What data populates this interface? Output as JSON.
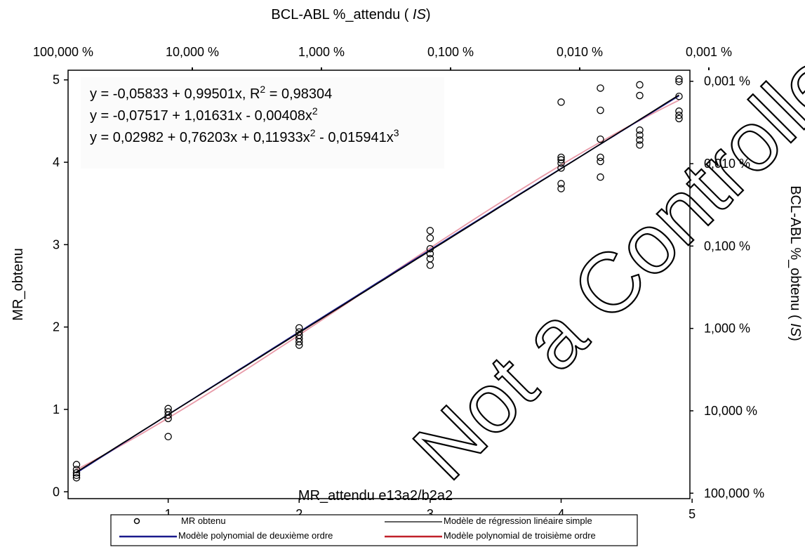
{
  "chart_data": {
    "type": "scatter",
    "xlabel": "MR_attendu e13a2/b2a2",
    "ylabel": "MR_obtenu",
    "top_axis_title": "BCL-ABL %_attendu (IS)",
    "right_axis_title": "BCL-ABL %_obtenu (IS)",
    "xlim": [
      0.3,
      5.0
    ],
    "ylim": [
      -0.1,
      5.1
    ],
    "x_ticks": [
      "1",
      "2",
      "3",
      "4",
      "5"
    ],
    "y_ticks": [
      "0",
      "1",
      "2",
      "3",
      "4",
      "5"
    ],
    "top_axis_ticks": [
      {
        "x": 0,
        "label": "100,000 %"
      },
      {
        "x": 1,
        "label": "10,000 %"
      },
      {
        "x": 2,
        "label": "1,000 %"
      },
      {
        "x": 3,
        "label": "0,100 %"
      },
      {
        "x": 4,
        "label": "0,010 %"
      },
      {
        "x": 5,
        "label": "0,001 %"
      }
    ],
    "right_axis_ticks": [
      {
        "y": 5,
        "label": "0,001 %"
      },
      {
        "y": 4,
        "label": "0,010 %"
      },
      {
        "y": 3,
        "label": "0,100 %"
      },
      {
        "y": 2,
        "label": "1,000 %"
      },
      {
        "y": 1,
        "label": "10,000 %"
      },
      {
        "y": 0,
        "label": "100,000 %"
      }
    ],
    "equations": [
      {
        "text": "y = -0,05833 + 0,99501x, R",
        "sup": "2",
        "tail": " = 0,98304"
      },
      {
        "text": "y = -0,07517 + 1,01631x - 0,00408x",
        "sup": "2",
        "tail": ""
      },
      {
        "text": "y = 0,02982 + 0,76203x + 0,11933x",
        "sup": "2",
        "tail": " - 0,015941x",
        "sup2": "3"
      }
    ],
    "series": [
      {
        "name": "MR obtenu",
        "kind": "points",
        "color": "#000000",
        "points": [
          [
            0.3,
            0.33
          ],
          [
            0.3,
            0.27
          ],
          [
            0.3,
            0.23
          ],
          [
            0.3,
            0.2
          ],
          [
            0.3,
            0.17
          ],
          [
            1.0,
            1.01
          ],
          [
            1.0,
            0.97
          ],
          [
            1.0,
            0.93
          ],
          [
            1.0,
            0.89
          ],
          [
            1.0,
            0.67
          ],
          [
            2.0,
            1.99
          ],
          [
            2.0,
            1.94
          ],
          [
            2.0,
            1.9
          ],
          [
            2.0,
            1.86
          ],
          [
            2.0,
            1.82
          ],
          [
            2.0,
            1.78
          ],
          [
            3.0,
            3.17
          ],
          [
            3.0,
            3.08
          ],
          [
            3.0,
            2.95
          ],
          [
            3.0,
            2.89
          ],
          [
            3.0,
            2.83
          ],
          [
            3.0,
            2.75
          ],
          [
            4.0,
            4.73
          ],
          [
            4.0,
            4.06
          ],
          [
            4.0,
            4.03
          ],
          [
            4.0,
            3.99
          ],
          [
            4.0,
            3.93
          ],
          [
            4.0,
            3.74
          ],
          [
            4.0,
            3.68
          ],
          [
            4.3,
            4.9
          ],
          [
            4.3,
            4.63
          ],
          [
            4.3,
            4.28
          ],
          [
            4.3,
            4.06
          ],
          [
            4.3,
            4.01
          ],
          [
            4.3,
            3.82
          ],
          [
            4.6,
            4.94
          ],
          [
            4.6,
            4.81
          ],
          [
            4.6,
            4.39
          ],
          [
            4.6,
            4.33
          ],
          [
            4.6,
            4.27
          ],
          [
            4.6,
            4.21
          ],
          [
            4.9,
            5.01
          ],
          [
            4.9,
            4.98
          ],
          [
            4.9,
            4.8
          ],
          [
            4.9,
            4.62
          ],
          [
            4.9,
            4.57
          ],
          [
            4.9,
            4.53
          ]
        ]
      },
      {
        "name": "Modèle de régression linéaire simple",
        "kind": "line",
        "color": "#000000",
        "coef": [
          -0.05833,
          0.99501
        ]
      },
      {
        "name": "Modèle polynomial de deuxième ordre",
        "kind": "line",
        "color": "#1a1a8c",
        "coef": [
          -0.07517,
          1.01631,
          -0.00408
        ]
      },
      {
        "name": "Modèle polynomial de troisième ordre",
        "kind": "line",
        "color": "#c0202a",
        "coef": [
          0.02982,
          0.76203,
          0.11933,
          -0.015941
        ]
      }
    ],
    "grid": false
  },
  "watermark": {
    "text": "Not a Controlled Copy"
  }
}
